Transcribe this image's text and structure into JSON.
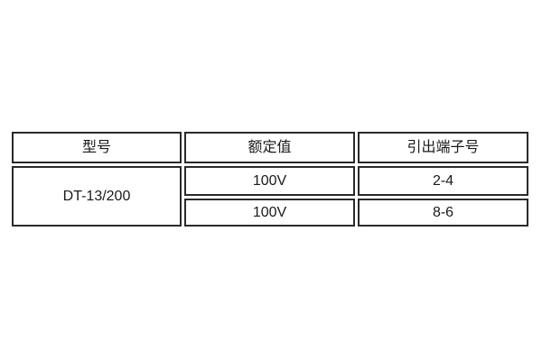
{
  "colors": {
    "background": "#ffffff",
    "border": "#2a2a2a",
    "text": "#1a1a1a"
  },
  "table": {
    "columns": [
      "型号",
      "额定值",
      "引出端子号"
    ],
    "model": "DT-13/200",
    "rows": [
      {
        "rated_value": "100V",
        "terminal_no": "2-4"
      },
      {
        "rated_value": "100V",
        "terminal_no": "8-6"
      }
    ]
  }
}
